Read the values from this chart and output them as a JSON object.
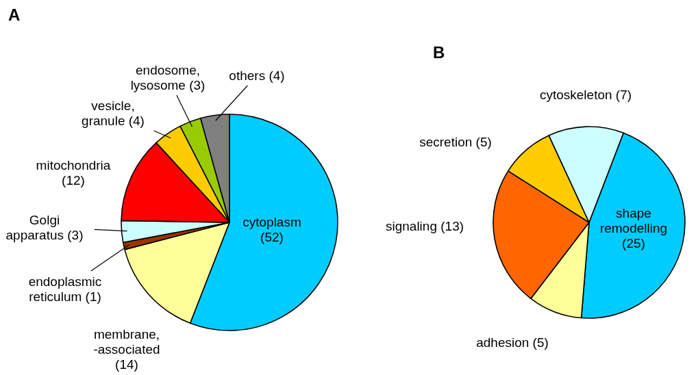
{
  "chart_data": [
    {
      "type": "pie",
      "title": "A",
      "categories": [
        "cytoplasm",
        "membrane,\n-associated",
        "endoplasmic\nreticulum",
        "Golgi\napparatus",
        "mitochondria",
        "vesicle,\ngranule",
        "endosome,\nlysosome",
        "others"
      ],
      "values": [
        52,
        14,
        1,
        3,
        12,
        4,
        3,
        4
      ],
      "value_labels": [
        "(52)",
        "(14)",
        "(1)",
        "(3)",
        "(12)",
        "(4)",
        "(3)",
        "(4)"
      ],
      "colors": [
        "#00ccff",
        "#ffff99",
        "#993300",
        "#ccffff",
        "#ff0000",
        "#ffcc00",
        "#99cc00",
        "#808080"
      ]
    },
    {
      "type": "pie",
      "title": "B",
      "categories": [
        "shape\nremodelling",
        "adhesion",
        "signaling",
        "secretion",
        "cytoskeleton"
      ],
      "values": [
        25,
        5,
        13,
        5,
        7
      ],
      "value_labels": [
        "(25)",
        "(5)",
        "(13)",
        "(5)",
        "(7)"
      ],
      "colors": [
        "#00ccff",
        "#ffff99",
        "#ff6600",
        "#ffcc00",
        "#ccffff"
      ]
    }
  ]
}
